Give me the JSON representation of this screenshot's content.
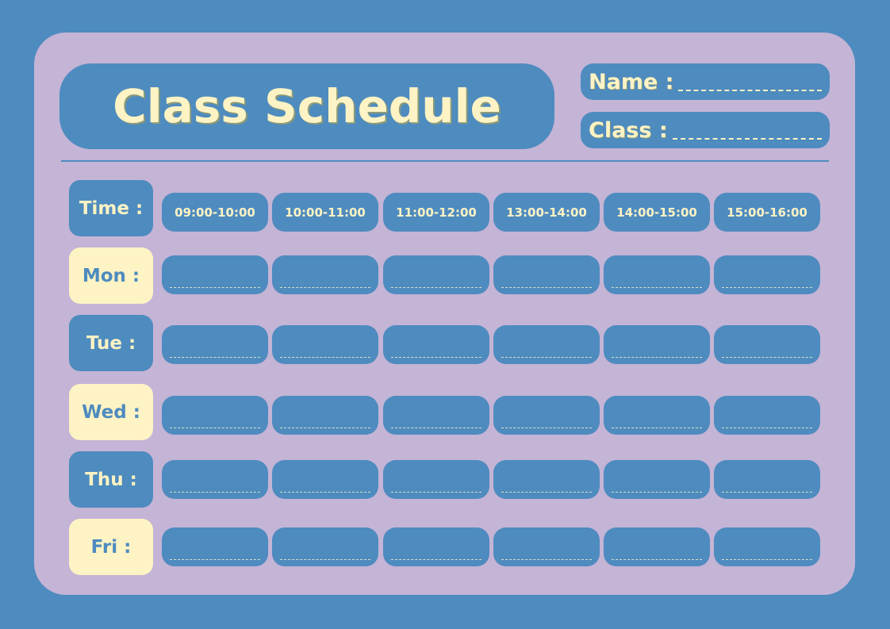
{
  "title": "Class Schedule",
  "fields": {
    "name_label": "Name :",
    "class_label": "Class :"
  },
  "time_label": "Time :",
  "time_slots": [
    "09:00-10:00",
    "10:00-11:00",
    "11:00-12:00",
    "13:00-14:00",
    "14:00-15:00",
    "15:00-16:00"
  ],
  "days": [
    "Mon :",
    "Tue :",
    "Wed :",
    "Thu :",
    "Fri :"
  ],
  "colors": {
    "background": "#4e8bbf",
    "card": "#c4b4d6",
    "accent": "#fdf3c4"
  }
}
